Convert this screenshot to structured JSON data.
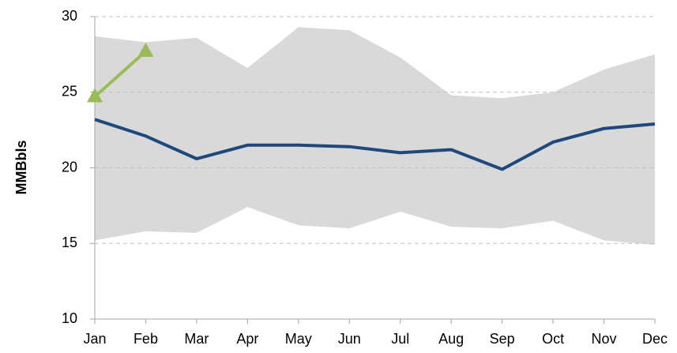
{
  "chart_data": {
    "type": "line",
    "y_label": "MMBbls",
    "categories": [
      "Jan",
      "Feb",
      "Mar",
      "Apr",
      "May",
      "Jun",
      "Jul",
      "Aug",
      "Sep",
      "Oct",
      "Nov",
      "Dec"
    ],
    "band": {
      "color": "#d9d9d9",
      "upper": [
        28.7,
        28.3,
        28.6,
        26.6,
        29.3,
        29.1,
        27.3,
        24.8,
        24.6,
        25.0,
        26.5,
        27.5
      ],
      "lower": [
        15.2,
        15.8,
        15.7,
        17.4,
        16.2,
        16.0,
        17.1,
        16.1,
        16.0,
        16.5,
        15.2,
        14.9
      ]
    },
    "series": [
      {
        "color": "#1f497d",
        "marker": "none",
        "values": [
          23.2,
          22.1,
          20.6,
          21.5,
          21.5,
          21.4,
          21.0,
          21.2,
          19.9,
          21.7,
          22.6,
          22.9
        ]
      },
      {
        "color": "#9bbb59",
        "marker": "triangle",
        "values": [
          24.7,
          27.7,
          null,
          null,
          null,
          null,
          null,
          null,
          null,
          null,
          null,
          null
        ]
      }
    ],
    "ylim": [
      10,
      30
    ],
    "yticks": [
      10,
      15,
      20,
      25,
      30
    ],
    "grid": true
  }
}
